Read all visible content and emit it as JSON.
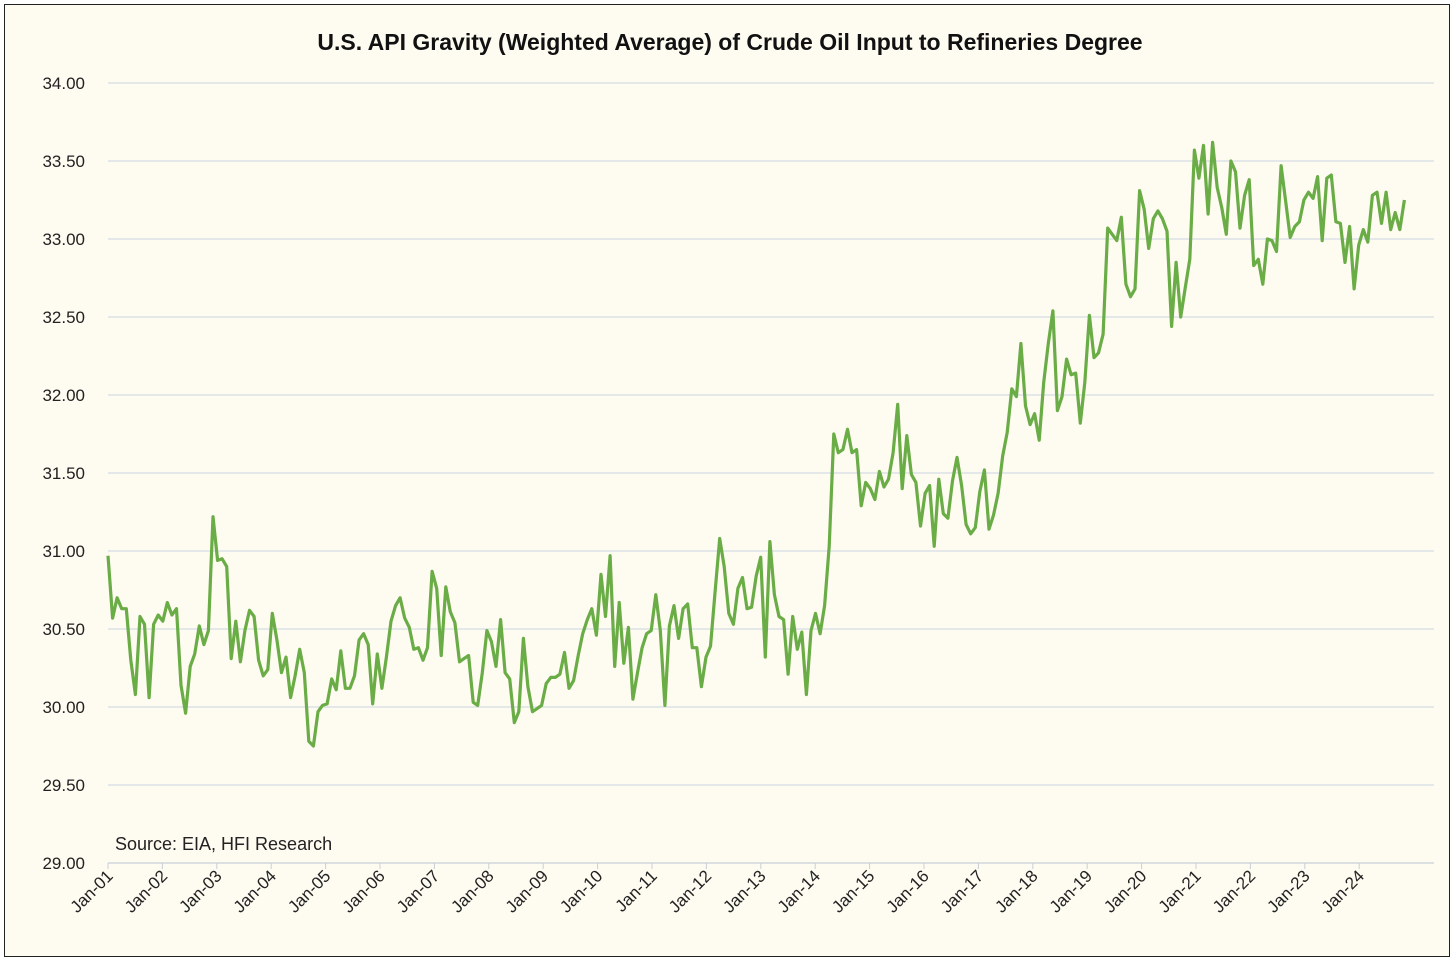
{
  "chart_data": {
    "type": "line",
    "title": "U.S. API Gravity (Weighted Average) of Crude Oil Input to Refineries Degree",
    "xlabel": "",
    "ylabel": "",
    "ylim": [
      29.0,
      34.0
    ],
    "yticks": [
      "29.00",
      "29.50",
      "30.00",
      "30.50",
      "31.00",
      "31.50",
      "32.00",
      "32.50",
      "33.00",
      "33.50",
      "34.00"
    ],
    "xticks": [
      "Jan-01",
      "Jan-02",
      "Jan-03",
      "Jan-04",
      "Jan-05",
      "Jan-06",
      "Jan-07",
      "Jan-08",
      "Jan-09",
      "Jan-10",
      "Jan-11",
      "Jan-12",
      "Jan-13",
      "Jan-14",
      "Jan-15",
      "Jan-16",
      "Jan-17",
      "Jan-18",
      "Jan-19",
      "Jan-20",
      "Jan-21",
      "Jan-22",
      "Jan-23",
      "Jan-24"
    ],
    "grid": "horizontal",
    "annotation": "Source: EIA, HFI Research",
    "line_color": "#6aac46",
    "x_start_year": 2001.0,
    "x_end_year": 2024.83,
    "series": [
      {
        "name": "API Gravity",
        "values": [
          30.97,
          30.57,
          30.7,
          30.63,
          30.63,
          30.3,
          30.08,
          30.58,
          30.53,
          30.06,
          30.53,
          30.59,
          30.55,
          30.67,
          30.59,
          30.63,
          30.14,
          29.96,
          30.26,
          30.34,
          30.52,
          30.4,
          30.49,
          31.22,
          30.94,
          30.95,
          30.9,
          30.31,
          30.55,
          30.29,
          30.49,
          30.62,
          30.58,
          30.3,
          30.2,
          30.24,
          30.6,
          30.43,
          30.22,
          30.32,
          30.06,
          30.2,
          30.37,
          30.22,
          29.78,
          29.75,
          29.97,
          30.01,
          30.02,
          30.18,
          30.11,
          30.36,
          30.12,
          30.12,
          30.2,
          30.43,
          30.47,
          30.4,
          30.02,
          30.34,
          30.12,
          30.32,
          30.55,
          30.65,
          30.7,
          30.57,
          30.51,
          30.37,
          30.38,
          30.3,
          30.38,
          30.87,
          30.76,
          30.33,
          30.77,
          30.61,
          30.54,
          30.29,
          30.31,
          30.33,
          30.03,
          30.01,
          30.22,
          30.49,
          30.42,
          30.26,
          30.56,
          30.22,
          30.18,
          29.9,
          29.97,
          30.44,
          30.13,
          29.97,
          29.99,
          30.01,
          30.15,
          30.19,
          30.19,
          30.21,
          30.35,
          30.12,
          30.17,
          30.33,
          30.47,
          30.56,
          30.63,
          30.46,
          30.85,
          30.58,
          30.97,
          30.26,
          30.67,
          30.28,
          30.51,
          30.05,
          30.22,
          30.38,
          30.47,
          30.49,
          30.72,
          30.49,
          30.01,
          30.52,
          30.65,
          30.44,
          30.63,
          30.66,
          30.38,
          30.38,
          30.13,
          30.32,
          30.39,
          30.74,
          31.08,
          30.9,
          30.6,
          30.53,
          30.76,
          30.83,
          30.63,
          30.64,
          30.84,
          30.96,
          30.32,
          31.06,
          30.72,
          30.58,
          30.56,
          30.21,
          30.58,
          30.37,
          30.48,
          30.08,
          30.49,
          30.6,
          30.47,
          30.65,
          31.03,
          31.75,
          31.63,
          31.65,
          31.78,
          31.63,
          31.65,
          31.29,
          31.44,
          31.4,
          31.33,
          31.51,
          31.41,
          31.46,
          31.63,
          31.94,
          31.4,
          31.74,
          31.49,
          31.44,
          31.16,
          31.37,
          31.42,
          31.03,
          31.46,
          31.24,
          31.21,
          31.45,
          31.6,
          31.42,
          31.17,
          31.11,
          31.15,
          31.38,
          31.52,
          31.14,
          31.23,
          31.37,
          31.61,
          31.76,
          32.04,
          31.99,
          32.33,
          31.93,
          31.81,
          31.88,
          31.71,
          32.08,
          32.33,
          32.54,
          31.9,
          31.99,
          32.23,
          32.13,
          32.14,
          31.82,
          32.08,
          32.51,
          32.24,
          32.27,
          32.39,
          33.07,
          33.03,
          32.99,
          33.14,
          32.71,
          32.63,
          32.68,
          33.31,
          33.19,
          32.94,
          33.13,
          33.18,
          33.13,
          33.05,
          32.44,
          32.85,
          32.5,
          32.69,
          32.87,
          33.57,
          33.39,
          33.6,
          33.16,
          33.62,
          33.33,
          33.2,
          33.03,
          33.5,
          33.43,
          33.07,
          33.28,
          33.38,
          32.83,
          32.87,
          32.71,
          33.0,
          32.99,
          32.92,
          33.47,
          33.24,
          33.01,
          33.08,
          33.11,
          33.25,
          33.3,
          33.26,
          33.4,
          32.99,
          33.39,
          33.41,
          33.11,
          33.1,
          32.85,
          33.08,
          32.68,
          32.96,
          33.06,
          32.98,
          33.28,
          33.3,
          33.1,
          33.3,
          33.06,
          33.17,
          33.06,
          33.25
        ]
      }
    ]
  }
}
